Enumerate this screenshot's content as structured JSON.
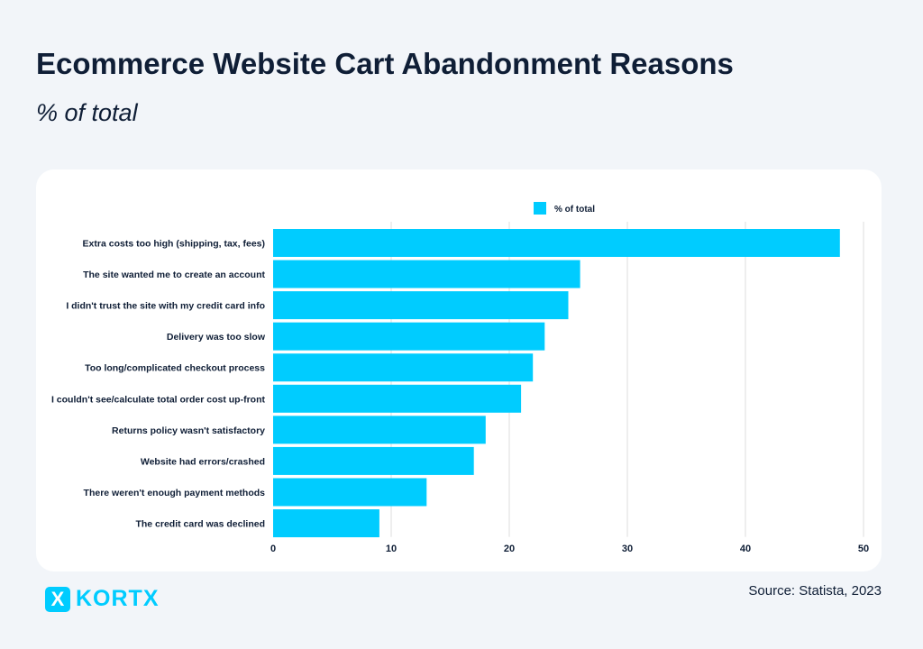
{
  "header": {
    "title": "Ecommerce Website Cart Abandonment Reasons",
    "subtitle": "% of total"
  },
  "footer": {
    "source": "Source: Statista, 2023",
    "logo_text": "KORTX",
    "logo_mark": "X"
  },
  "colors": {
    "bar": "#00ccff",
    "grid": "#dddddd",
    "text": "#0f1e36"
  },
  "chart_data": {
    "type": "bar",
    "orientation": "horizontal",
    "categories": [
      "Extra costs too high (shipping, tax, fees)",
      "The site wanted me to create an account",
      "I didn't trust the site with my credit card info",
      "Delivery was too slow",
      "Too long/complicated checkout process",
      "I couldn't see/calculate total order cost up-front",
      "Returns policy wasn't satisfactory",
      "Website had errors/crashed",
      "There weren't enough payment methods",
      "The credit card was declined"
    ],
    "series": [
      {
        "name": "% of total",
        "values": [
          48,
          26,
          25,
          23,
          22,
          21,
          18,
          17,
          13,
          9
        ]
      }
    ],
    "xlim": [
      0,
      50
    ],
    "xticks": [
      0,
      10,
      20,
      30,
      40,
      50
    ],
    "grid": true,
    "legend": "top-center"
  }
}
